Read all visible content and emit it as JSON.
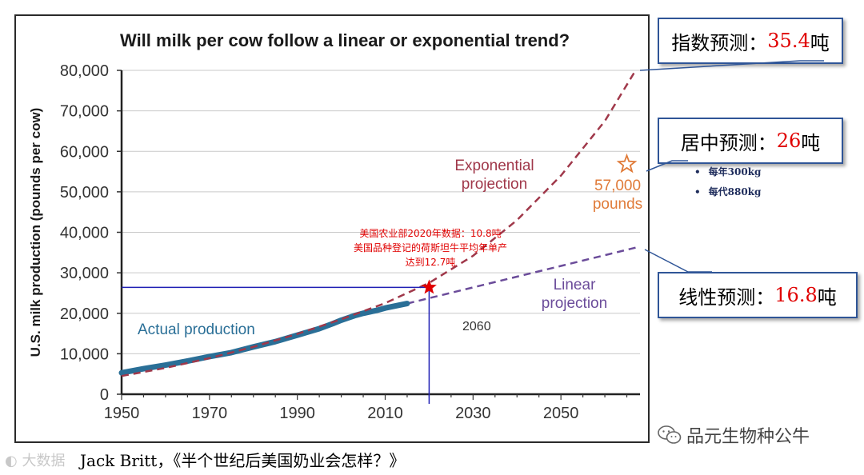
{
  "chart_data": {
    "type": "line",
    "title": "Will milk per cow follow a linear or exponential trend?",
    "ylabel": "U.S. milk production (pounds per cow)",
    "xlabel": "",
    "xlim": [
      1950,
      2068
    ],
    "ylim": [
      0,
      80000
    ],
    "x_ticks": [
      1950,
      1970,
      1990,
      2010,
      2030,
      2050
    ],
    "x_tick_labels": [
      "1950",
      "1970",
      "1990",
      "2010",
      "2030",
      "2050"
    ],
    "y_ticks": [
      0,
      10000,
      20000,
      30000,
      40000,
      50000,
      60000,
      70000,
      80000
    ],
    "y_tick_labels": [
      "0",
      "10,000",
      "20,000",
      "30,000",
      "40,000",
      "50,000",
      "60,000",
      "70,000",
      "80,000"
    ],
    "grid": "horizontal",
    "series": [
      {
        "name": "Actual production",
        "style": "solid",
        "color": "#2a6f97",
        "x": [
          1950,
          1955,
          1960,
          1965,
          1970,
          1975,
          1980,
          1985,
          1990,
          1995,
          1998,
          2000,
          2003,
          2005,
          2008,
          2010,
          2015
        ],
        "y": [
          5300,
          6300,
          7200,
          8200,
          9300,
          10300,
          11700,
          13000,
          14600,
          16200,
          17400,
          18300,
          19400,
          20000,
          20700,
          21300,
          22400
        ]
      },
      {
        "name": "Exponential projection",
        "style": "dashed",
        "color": "#a0384a",
        "x": [
          1950,
          1960,
          1970,
          1980,
          1990,
          2000,
          2010,
          2020,
          2030,
          2040,
          2050,
          2060,
          2067
        ],
        "y": [
          4500,
          6500,
          8900,
          11700,
          14900,
          18500,
          22500,
          27500,
          34200,
          43000,
          54000,
          67500,
          80000
        ]
      },
      {
        "name": "Linear projection",
        "style": "dashed",
        "color": "#6b4c9a",
        "x": [
          2015,
          2067
        ],
        "y": [
          22400,
          36200
        ]
      }
    ],
    "series_labels": {
      "actual": "Actual production",
      "exponential_line1": "Exponential",
      "exponential_line2": "projection",
      "linear_line1": "Linear",
      "linear_line2": "projection"
    },
    "annotations": {
      "year_2060": "2060",
      "target_line1": "57,000",
      "target_line2": "pounds",
      "target_point": {
        "x": 2065,
        "y": 56800,
        "color": "#e07b39"
      },
      "usda_point": {
        "x": 2020,
        "y": 26400,
        "color": "#e00000"
      },
      "usda_line1": "美国农业部2020年数据：10.8吨",
      "usda_line2": "美国品种登记的荷斯坦牛平均年单产",
      "usda_line3": "达到12.7吨",
      "guide_color": "#1f1fb4"
    }
  },
  "callouts": {
    "exponential": {
      "label": "指数预测：",
      "value": "35.4",
      "unit": "吨"
    },
    "middle": {
      "label": "居中预测：",
      "value": "26",
      "unit": "吨"
    },
    "linear": {
      "label": "线性预测：",
      "value": "16.8",
      "unit": "吨"
    }
  },
  "bullets": [
    "每年300kg",
    "每代880kg"
  ],
  "footer": "Jack Britt，《半个世纪后美国奶业会怎样？》",
  "watermark_left": "大数据",
  "wechat_account": "品元生物种公牛",
  "colors": {
    "callout_border": "#2f5597",
    "value_red": "#e00000"
  }
}
